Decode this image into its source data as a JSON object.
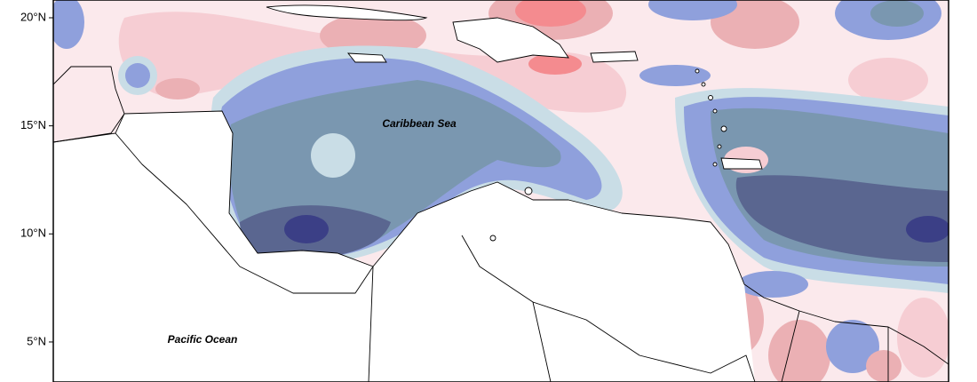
{
  "map": {
    "lat_ticks": [
      {
        "value": 20,
        "label": "20°N"
      },
      {
        "value": 15,
        "label": "15°N"
      },
      {
        "value": 10,
        "label": "10°N"
      },
      {
        "value": 5,
        "label": "5°N"
      }
    ],
    "place_labels": [
      "Caribbean Sea",
      "Pacific Ocean"
    ]
  }
}
